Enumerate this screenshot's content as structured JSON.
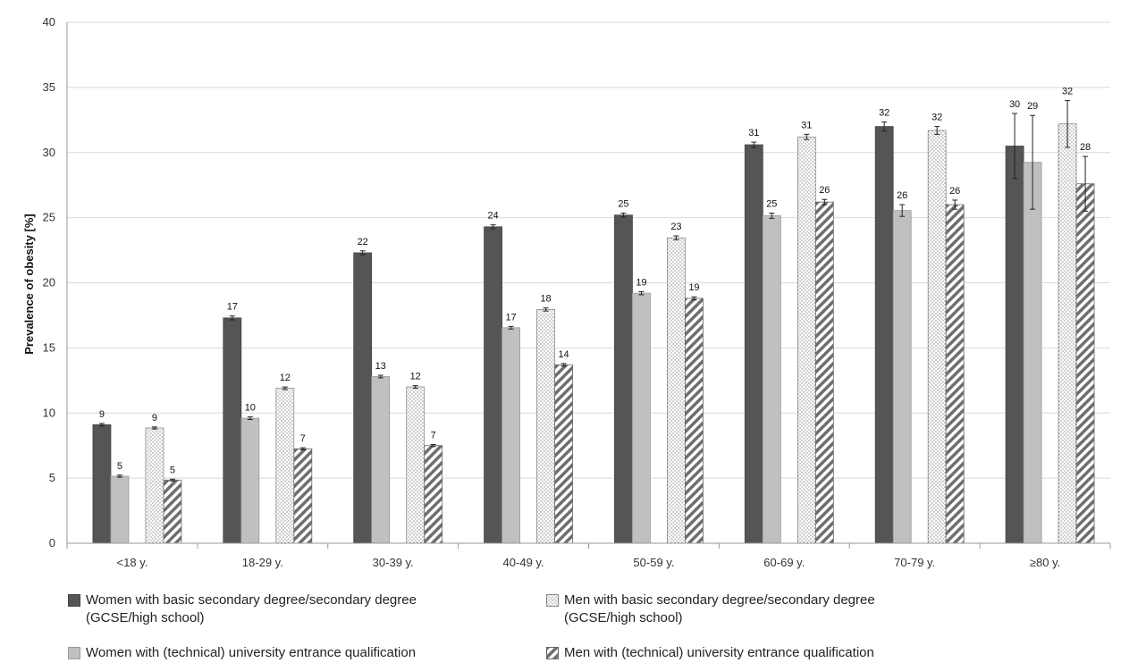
{
  "chart_data": {
    "type": "bar",
    "ylabel": "Prevalence of obesity [%]",
    "xlabel": "",
    "ylim": [
      0,
      40
    ],
    "yticks": [
      0,
      5,
      10,
      15,
      20,
      25,
      30,
      35,
      40
    ],
    "grid": true,
    "legend_position": "bottom",
    "categories": [
      "<18 y.",
      "18-29 y.",
      "30-39 y.",
      "40-49 y.",
      "50-59 y.",
      "60-69 y.",
      "70-79 y.",
      "≥80 y."
    ],
    "series": [
      {
        "name": "Women with basic secondary degree/secondary degree\n(GCSE/high school)",
        "fill": "dark",
        "values": [
          9.1,
          17.3,
          22.3,
          24.3,
          25.2,
          30.6,
          32.0,
          30.5
        ],
        "errors": [
          0.1,
          0.15,
          0.15,
          0.15,
          0.15,
          0.2,
          0.35,
          2.5
        ],
        "labels": [
          "9",
          "17",
          "22",
          "24",
          "25",
          "31",
          "32",
          "30"
        ]
      },
      {
        "name": "Women with (technical) university entrance qualification",
        "fill": "light",
        "values": [
          5.15,
          9.6,
          12.8,
          16.55,
          19.2,
          25.15,
          25.55,
          29.25
        ],
        "errors": [
          0.08,
          0.1,
          0.1,
          0.1,
          0.12,
          0.2,
          0.45,
          3.6
        ],
        "labels": [
          "5",
          "10",
          "13",
          "17",
          "19",
          "25",
          "26",
          "29"
        ]
      },
      {
        "name": "Men with basic secondary degree/secondary degree\n(GCSE/high school)",
        "fill": "dotted",
        "values": [
          8.85,
          11.9,
          12.0,
          17.95,
          23.45,
          31.2,
          31.7,
          32.2
        ],
        "errors": [
          0.08,
          0.1,
          0.1,
          0.12,
          0.15,
          0.2,
          0.3,
          1.8
        ],
        "labels": [
          "9",
          "12",
          "12",
          "18",
          "23",
          "31",
          "32",
          "32"
        ]
      },
      {
        "name": "Men with (technical) university entrance qualification",
        "fill": "hatched",
        "values": [
          4.85,
          7.25,
          7.5,
          13.7,
          18.8,
          26.2,
          26.0,
          27.6
        ],
        "errors": [
          0.07,
          0.08,
          0.08,
          0.1,
          0.12,
          0.2,
          0.35,
          2.1
        ],
        "labels": [
          "5",
          "7",
          "7",
          "14",
          "19",
          "26",
          "26",
          "28"
        ]
      }
    ]
  },
  "colors": {
    "dark": "#555555",
    "light": "#c0c0c0",
    "grid": "#d9d9d9",
    "axis": "#999999"
  }
}
